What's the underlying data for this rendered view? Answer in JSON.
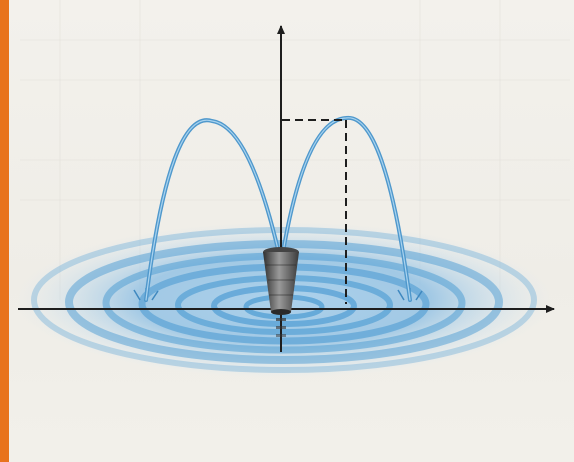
{
  "figure": {
    "frame_color": "#e8731c",
    "water_color": "#4f98cc",
    "ripple_color": "#6aaedb",
    "axis_color": "#1e1e1e",
    "guide_color": "#1e1e1e",
    "nozzle_color": "#5a5a5a",
    "axes": {
      "horizontal_arrow": "right",
      "vertical_arrow": "up"
    },
    "elements": [
      "left-water-arc",
      "right-water-arc",
      "fountain-nozzle",
      "ripple-pool",
      "vertex-dashed-guide"
    ]
  }
}
